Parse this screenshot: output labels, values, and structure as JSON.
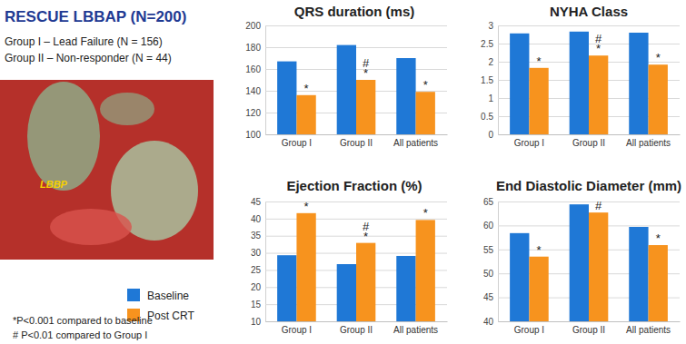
{
  "page": {
    "title": "RESCUE LBBAP (N=200)",
    "groups": [
      "Group I – Lead Failure (N = 156)",
      "Group II – Non-responder (N = 44)"
    ],
    "image_label": "LBBP",
    "footnotes": [
      "*P<0.001 compared to baseline",
      "# P<0.01 compared to Group I"
    ]
  },
  "chart_data": [
    {
      "type": "bar",
      "title": "QRS duration (ms)",
      "categories": [
        "Group I",
        "Group II",
        "All patients"
      ],
      "series": [
        {
          "name": "Baseline",
          "color": "#1f78d6",
          "values": [
            167,
            182,
            170
          ]
        },
        {
          "name": "Post CRT",
          "color": "#f7931e",
          "values": [
            136,
            150,
            139
          ],
          "annotations": [
            [
              "*"
            ],
            [
              "#",
              "*"
            ],
            [
              "*"
            ]
          ]
        }
      ],
      "ylim": [
        100,
        200
      ],
      "yticks": [
        100,
        120,
        140,
        160,
        180,
        200
      ],
      "grid": true
    },
    {
      "type": "bar",
      "title": "NYHA Class",
      "categories": [
        "Group I",
        "Group II",
        "All patients"
      ],
      "series": [
        {
          "name": "Baseline",
          "color": "#1f78d6",
          "values": [
            2.78,
            2.83,
            2.8
          ]
        },
        {
          "name": "Post CRT",
          "color": "#f7931e",
          "values": [
            1.83,
            2.17,
            1.92
          ],
          "annotations": [
            [
              "*"
            ],
            [
              "#",
              "*"
            ],
            [
              "*"
            ]
          ]
        }
      ],
      "ylim": [
        0,
        3
      ],
      "yticks": [
        0,
        0.5,
        1,
        1.5,
        2,
        2.5,
        3
      ],
      "grid": true
    },
    {
      "type": "bar",
      "title": "Ejection Fraction (%)",
      "categories": [
        "Group I",
        "Group II",
        "All patients"
      ],
      "series": [
        {
          "name": "Baseline",
          "color": "#1f78d6",
          "values": [
            29.3,
            26.7,
            29.1
          ]
        },
        {
          "name": "Post CRT",
          "color": "#f7931e",
          "values": [
            41.6,
            32.9,
            39.6
          ],
          "annotations": [
            [
              "*"
            ],
            [
              "#",
              "*"
            ],
            [
              "*"
            ]
          ]
        }
      ],
      "ylim": [
        10,
        45
      ],
      "yticks": [
        10,
        15,
        20,
        25,
        30,
        35,
        40,
        45
      ],
      "grid": true
    },
    {
      "type": "bar",
      "title": "End Diastolic Diameter (mm)",
      "categories": [
        "Group I",
        "Group II",
        "All patients"
      ],
      "series": [
        {
          "name": "Baseline",
          "color": "#1f78d6",
          "values": [
            58.4,
            64.4,
            59.7
          ]
        },
        {
          "name": "Post CRT",
          "color": "#f7931e",
          "values": [
            53.5,
            62.7,
            55.9
          ],
          "annotations": [
            [
              "*"
            ],
            [
              "#"
            ],
            [
              "*"
            ]
          ]
        }
      ],
      "ylim": [
        40,
        65
      ],
      "yticks": [
        40,
        45,
        50,
        55,
        60,
        65
      ],
      "grid": true
    }
  ]
}
